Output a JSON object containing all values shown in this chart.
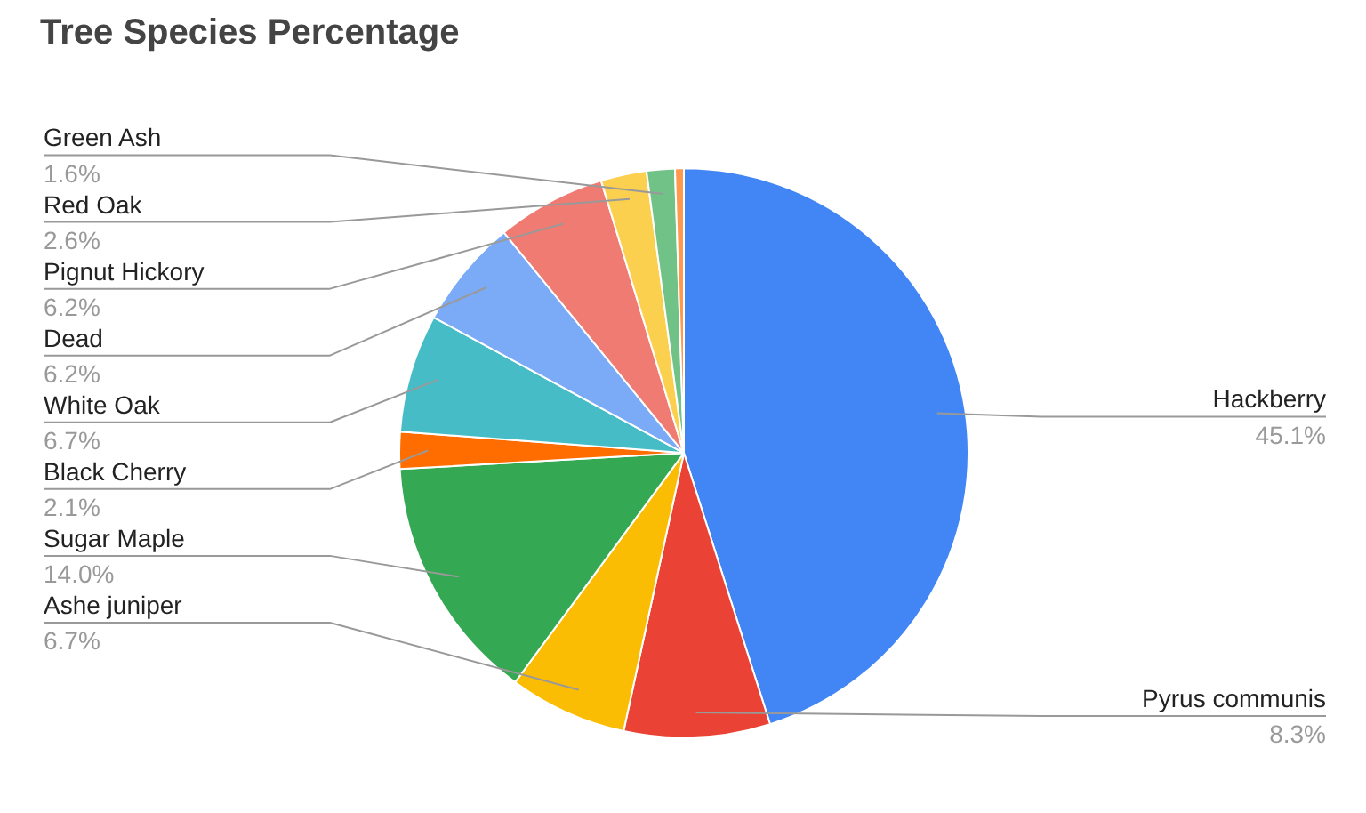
{
  "chart_data": {
    "type": "pie",
    "title": "Tree Species Percentage",
    "categories": [
      "Hackberry",
      "Pyrus communis",
      "Ashe juniper",
      "Sugar Maple",
      "Black Cherry",
      "White Oak",
      "Dead",
      "Pignut Hickory",
      "Red Oak",
      "Green Ash",
      null
    ],
    "values": [
      45.1,
      8.3,
      6.7,
      14.0,
      2.1,
      6.7,
      6.2,
      6.2,
      2.6,
      1.6,
      0.5
    ],
    "colors": [
      "#4285f4",
      "#ea4335",
      "#fbbc04",
      "#34a853",
      "#ff6d01",
      "#46bdc6",
      "#7baaf7",
      "#f07b72",
      "#fcd04f",
      "#71c287",
      "#ff994d"
    ],
    "value_labels": [
      "45.1%",
      "8.3%",
      "6.7%",
      "14.0%",
      "2.1%",
      "6.7%",
      "6.2%",
      "6.2%",
      "2.6%",
      "1.6%",
      null
    ]
  }
}
